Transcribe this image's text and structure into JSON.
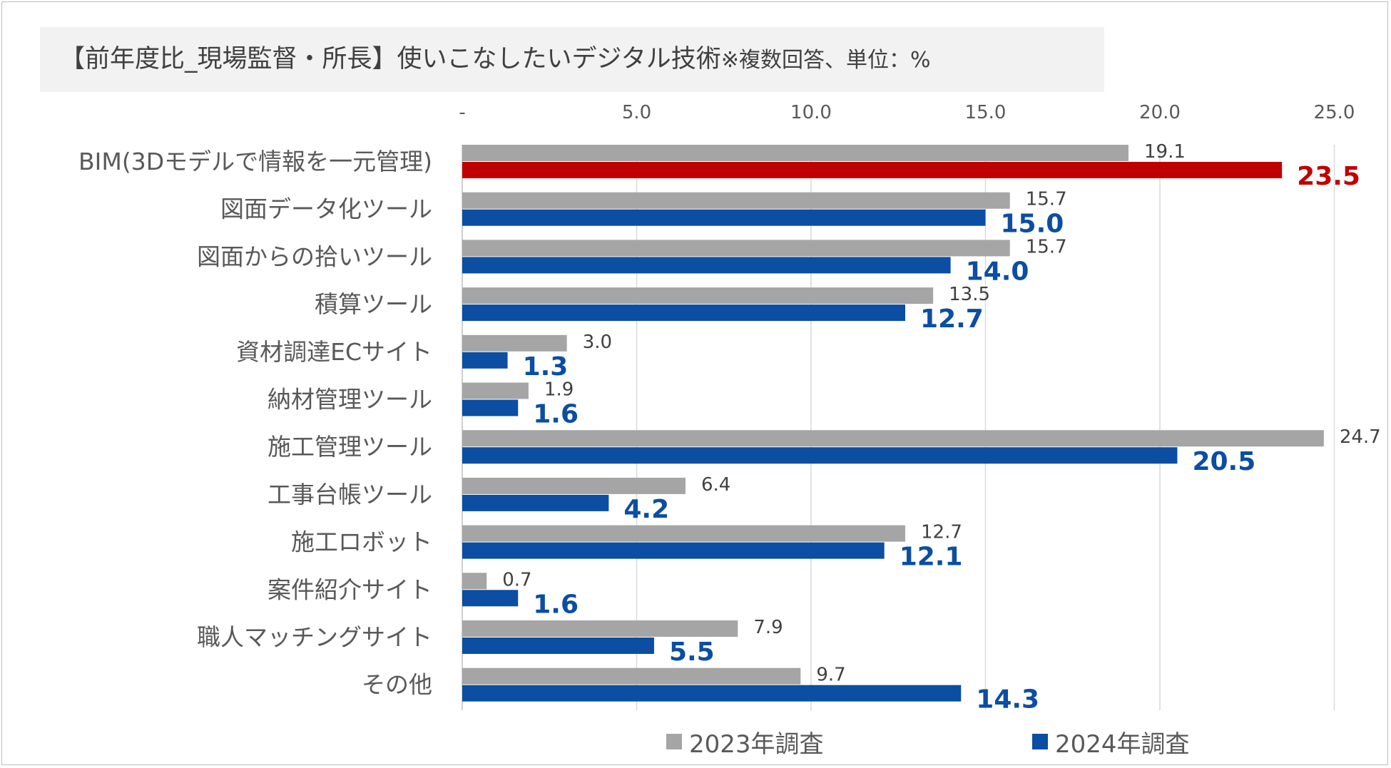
{
  "title": {
    "main": "【前年度比_現場監督・所長】使いこなしたいデジタル技術",
    "sub": "※複数回答、単位：%"
  },
  "colors": {
    "series_2023": "#a5a5a5",
    "series_2024": "#0b4ea2",
    "highlight": "#c00000",
    "grid": "#d9d9d9"
  },
  "chart_data": {
    "type": "bar",
    "orientation": "horizontal",
    "title": "【前年度比_現場監督・所長】使いこなしたいデジタル技術※複数回答、単位：%",
    "xlabel": "",
    "ylabel": "",
    "xlim": [
      0,
      25
    ],
    "x_ticks": [
      0,
      5,
      10,
      15,
      20,
      25
    ],
    "x_tick_labels": [
      "-",
      "5.0",
      "10.0",
      "15.0",
      "20.0",
      "25.0"
    ],
    "x_axis_position": "top",
    "grid": true,
    "categories": [
      "BIM(3Dモデルで情報を一元管理)",
      "図面データ化ツール",
      "図面からの拾いツール",
      "積算ツール",
      "資材調達ECサイト",
      "納材管理ツール",
      "施工管理ツール",
      "工事台帳ツール",
      "施工ロボット",
      "案件紹介サイト",
      "職人マッチングサイト",
      "その他"
    ],
    "series": [
      {
        "name": "2023年調査",
        "values": [
          19.1,
          15.7,
          15.7,
          13.5,
          3.0,
          1.9,
          24.7,
          6.4,
          12.7,
          0.7,
          7.9,
          9.7
        ],
        "labels": [
          "19.1",
          "15.7",
          "15.7",
          "13.5",
          "3.0",
          "1.9",
          "24.7",
          "6.4",
          "12.7",
          "0.7",
          "7.9",
          "9.7"
        ]
      },
      {
        "name": "2024年調査",
        "values": [
          23.5,
          15.0,
          14.0,
          12.7,
          1.3,
          1.6,
          20.5,
          4.2,
          12.1,
          1.6,
          5.5,
          14.3
        ],
        "labels": [
          "23.5",
          "15.0",
          "14.0",
          "12.7",
          "1.3",
          "1.6",
          "20.5",
          "4.2",
          "12.1",
          "1.6",
          "5.5",
          "14.3"
        ],
        "highlight_index": 0
      }
    ],
    "legend": {
      "position": "bottom",
      "items": [
        "2023年調査",
        "2024年調査"
      ]
    }
  }
}
